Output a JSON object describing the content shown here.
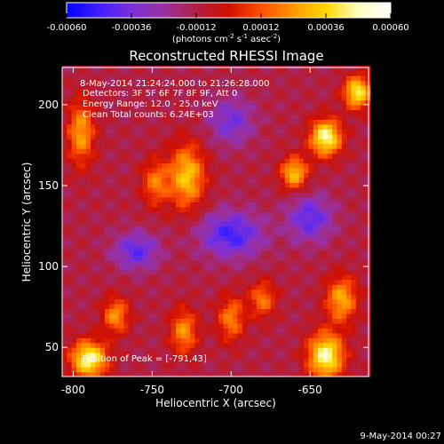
{
  "window": {
    "title": "Reconstructed RHESSI Image"
  },
  "colorbar": {
    "ticks": [
      "-0.00060",
      "-0.00036",
      "-0.00012",
      "0.00012",
      "0.00036",
      "0.00060"
    ],
    "tick_values": [
      -0.0006,
      -0.00036,
      -0.00012,
      0.00012,
      0.00036,
      0.0006
    ],
    "range": [
      -0.0006,
      0.0006
    ],
    "units_main": "(photons cm",
    "units_exp1": "-2",
    "units_mid": " s",
    "units_exp2": "-1",
    "units_end": " asec",
    "units_exp3": "-2",
    "units_close": ")",
    "colors": [
      "#0000ff",
      "#4020ff",
      "#7a30d8",
      "#9a30a0",
      "#b02040",
      "#d01000",
      "#ff5000",
      "#ff9800",
      "#ffd800",
      "#ffffc0",
      "#ffffff"
    ]
  },
  "info": {
    "line1": "8-May-2014 21:24:24.000 to 21:26:28.000",
    "line2": "Detectors: 3F 5F 6F 7F 8F 9F, Att 0",
    "line3": "Energy Range: 12.0 - 25.0 keV",
    "line4": "Clean    Total counts: 6.24E+03"
  },
  "peak": "Position of Peak = [-791,43]",
  "footer_date": "9-May-2014 00:27",
  "chart_data": {
    "type": "heatmap",
    "title": "Reconstructed RHESSI Image",
    "xlabel": "Heliocentric X (arcsec)",
    "ylabel": "Heliocentric Y (arcsec)",
    "xlim": [
      -807,
      -613
    ],
    "ylim": [
      32,
      223
    ],
    "xticks": [
      -800,
      -750,
      -700,
      -650
    ],
    "yticks": [
      50,
      100,
      150,
      200
    ],
    "xtick_labels": [
      "-800",
      "-750",
      "-700",
      "-650"
    ],
    "ytick_labels": [
      "50",
      "100",
      "150",
      "200"
    ],
    "value_range": [
      -0.0006,
      0.0006
    ],
    "features": [
      {
        "x": -640,
        "y": 180,
        "amplitude": 0.0006,
        "sx": 7,
        "sy": 8
      },
      {
        "x": -620,
        "y": 208,
        "amplitude": 0.00055,
        "sx": 6,
        "sy": 7
      },
      {
        "x": -660,
        "y": 158,
        "amplitude": 0.00045,
        "sx": 6,
        "sy": 7
      },
      {
        "x": -728,
        "y": 156,
        "amplitude": 0.00045,
        "sx": 8,
        "sy": 14
      },
      {
        "x": -748,
        "y": 152,
        "amplitude": 0.0003,
        "sx": 6,
        "sy": 10
      },
      {
        "x": -795,
        "y": 183,
        "amplitude": 0.00038,
        "sx": 6,
        "sy": 14
      },
      {
        "x": -790,
        "y": 43,
        "amplitude": 0.0006,
        "sx": 8,
        "sy": 8
      },
      {
        "x": -773,
        "y": 70,
        "amplitude": 0.00035,
        "sx": 6,
        "sy": 8
      },
      {
        "x": -730,
        "y": 60,
        "amplitude": 0.00035,
        "sx": 6,
        "sy": 10
      },
      {
        "x": -700,
        "y": 68,
        "amplitude": 0.00032,
        "sx": 6,
        "sy": 10
      },
      {
        "x": -680,
        "y": 80,
        "amplitude": 0.0003,
        "sx": 6,
        "sy": 8
      },
      {
        "x": -640,
        "y": 45,
        "amplitude": 0.0006,
        "sx": 8,
        "sy": 10
      },
      {
        "x": -630,
        "y": 80,
        "amplitude": 0.0004,
        "sx": 7,
        "sy": 10
      },
      {
        "x": -700,
        "y": 120,
        "amplitude": -0.00035,
        "sx": 14,
        "sy": 10
      },
      {
        "x": -760,
        "y": 110,
        "amplitude": -0.0003,
        "sx": 10,
        "sy": 8
      },
      {
        "x": -650,
        "y": 130,
        "amplitude": -0.0003,
        "sx": 10,
        "sy": 10
      },
      {
        "x": -700,
        "y": 190,
        "amplitude": -0.00025,
        "sx": 10,
        "sy": 10
      }
    ]
  }
}
